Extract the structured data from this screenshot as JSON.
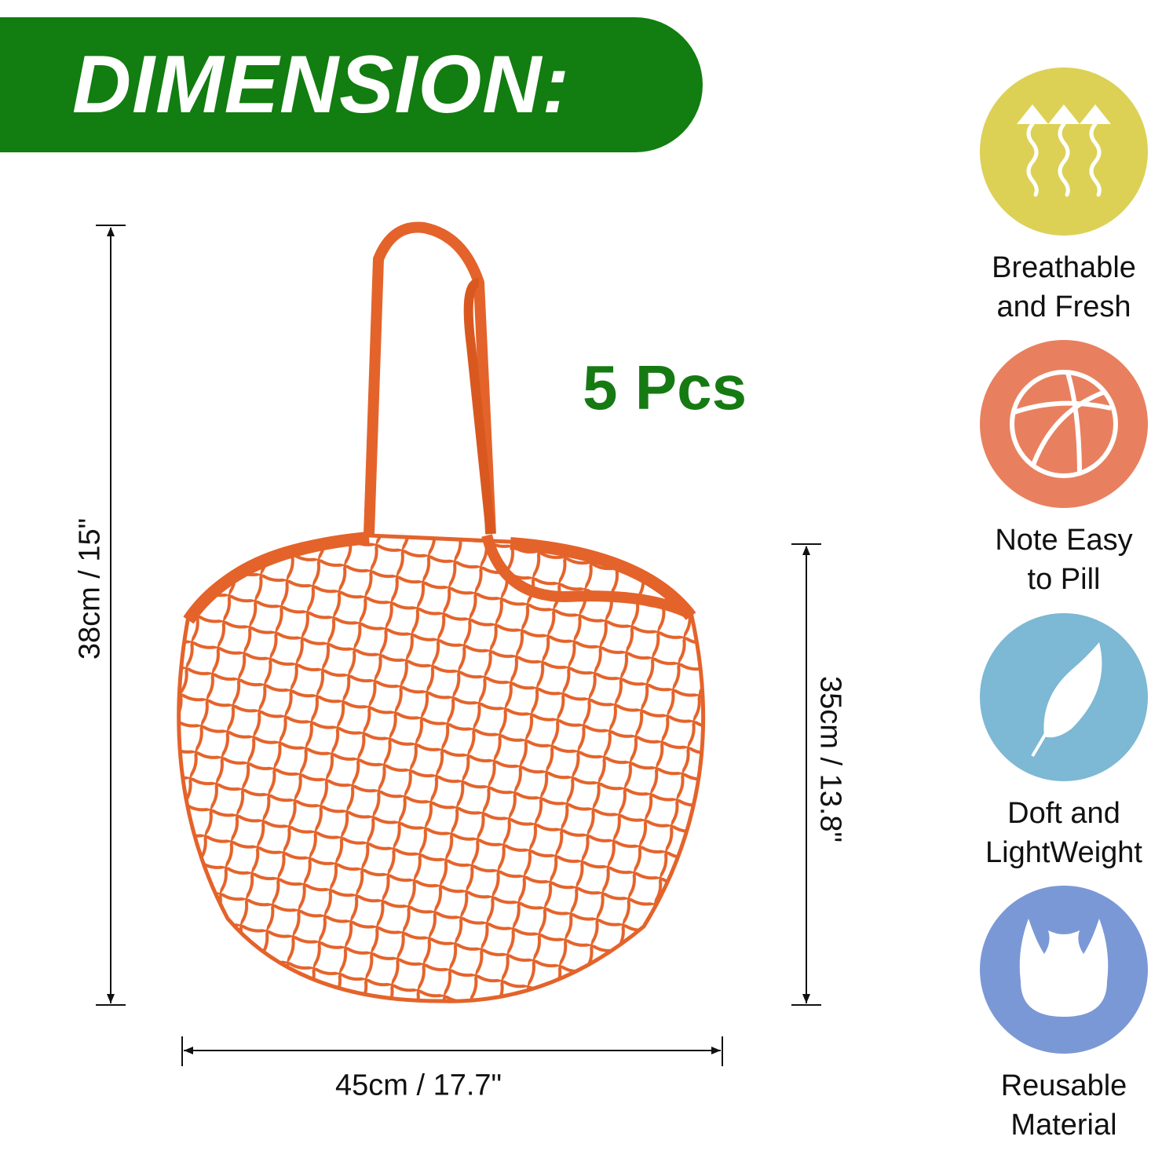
{
  "banner": {
    "title": "DIMENSION:",
    "color": "#127d10"
  },
  "quantity": "5 Pcs",
  "dimensions": {
    "total_height": "38cm / 15\"",
    "bag_height": "35cm / 13.8\"",
    "width": "45cm / 17.7\""
  },
  "product": {
    "name": "mesh bag",
    "color": "#e4632a"
  },
  "features": [
    {
      "label_line1": "Breathable",
      "label_line2": "and Fresh",
      "icon": "rising-air-icon",
      "color": "#dcd155"
    },
    {
      "label_line1": "Note Easy",
      "label_line2": "to Pill",
      "icon": "ball-icon",
      "color": "#e8805f"
    },
    {
      "label_line1": "Doft and",
      "label_line2": "LightWeight",
      "icon": "feather-icon",
      "color": "#7db8d4"
    },
    {
      "label_line1": "Reusable",
      "label_line2": "Material",
      "icon": "bag-icon",
      "color": "#7b98d6"
    }
  ]
}
